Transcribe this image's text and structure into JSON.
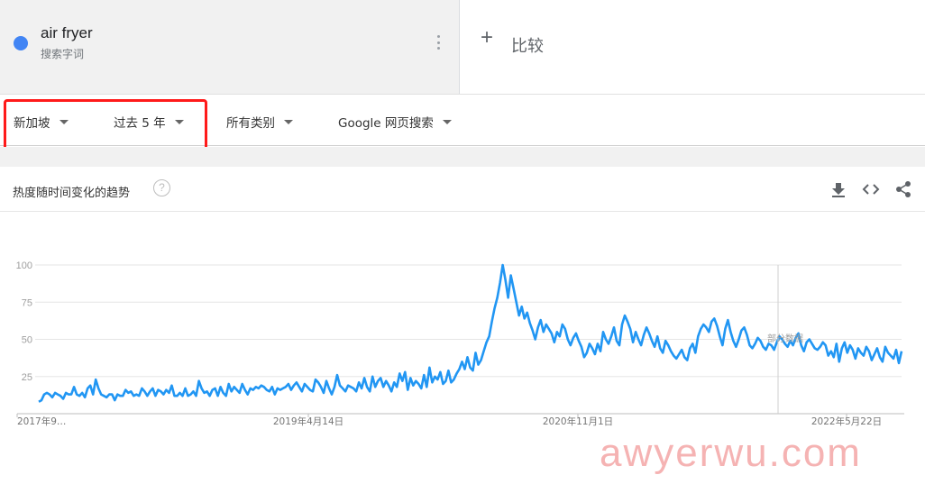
{
  "term": {
    "name": "air fryer",
    "subtitle": "搜索字词",
    "color": "#4285f4"
  },
  "compare": {
    "label": "比较"
  },
  "filters": [
    {
      "label": "新加坡"
    },
    {
      "label": "过去 5 年"
    },
    {
      "label": "所有类别"
    },
    {
      "label": "Google 网页搜索"
    }
  ],
  "card": {
    "title": "热度随时间变化的趋势",
    "help": "?"
  },
  "icons": [
    "download-icon",
    "embed-icon",
    "share-icon",
    "more-vert-icon",
    "help-icon",
    "add-icon"
  ],
  "watermark": "awyerwu.com",
  "chart_data": {
    "type": "line",
    "yticks": [
      100,
      75,
      50,
      25
    ],
    "ylim": [
      0,
      100
    ],
    "x_tick_labels": [
      "2017年9…",
      "2019年4月14日",
      "2020年11月1日",
      "2022年5月22日"
    ],
    "hover_label": "部分数据",
    "color": "#2196f3",
    "series": [
      {
        "values": [
          8,
          9,
          13,
          14,
          13,
          11,
          14,
          13,
          12,
          10,
          14,
          13,
          13,
          18,
          13,
          12,
          14,
          11,
          17,
          19,
          13,
          23,
          17,
          13,
          12,
          11,
          13,
          13,
          9,
          13,
          12,
          12,
          16,
          14,
          15,
          12,
          13,
          12,
          17,
          15,
          12,
          15,
          17,
          12,
          16,
          15,
          13,
          16,
          14,
          19,
          12,
          12,
          14,
          12,
          17,
          12,
          13,
          15,
          12,
          22,
          17,
          14,
          15,
          12,
          16,
          17,
          12,
          18,
          14,
          12,
          20,
          15,
          18,
          16,
          14,
          20,
          16,
          13,
          17,
          16,
          18,
          17,
          19,
          18,
          16,
          15,
          18,
          13,
          17,
          16,
          17,
          18,
          20,
          16,
          19,
          21,
          18,
          15,
          20,
          18,
          16,
          15,
          23,
          21,
          18,
          14,
          22,
          17,
          13,
          18,
          26,
          19,
          17,
          15,
          19,
          18,
          17,
          15,
          21,
          17,
          24,
          18,
          15,
          25,
          18,
          22,
          24,
          18,
          22,
          19,
          15,
          21,
          18,
          27,
          22,
          28,
          16,
          24,
          19,
          22,
          20,
          17,
          26,
          18,
          31,
          21,
          25,
          23,
          28,
          20,
          22,
          29,
          21,
          23,
          27,
          30,
          35,
          30,
          38,
          31,
          29,
          41,
          33,
          36,
          42,
          48,
          52,
          62,
          71,
          78,
          88,
          100,
          90,
          78,
          93,
          84,
          75,
          66,
          72,
          64,
          68,
          61,
          56,
          50,
          58,
          63,
          55,
          60,
          57,
          54,
          48,
          55,
          52,
          60,
          57,
          50,
          46,
          51,
          54,
          49,
          45,
          38,
          41,
          47,
          44,
          40,
          47,
          42,
          55,
          50,
          47,
          52,
          58,
          49,
          46,
          60,
          66,
          62,
          57,
          48,
          55,
          50,
          46,
          53,
          58,
          54,
          49,
          45,
          52,
          44,
          41,
          49,
          46,
          42,
          39,
          37,
          40,
          43,
          38,
          36,
          44,
          47,
          41,
          52,
          57,
          60,
          58,
          55,
          62,
          64,
          59,
          52,
          46,
          57,
          63,
          55,
          49,
          45,
          50,
          56,
          58,
          53,
          46,
          44,
          47,
          51,
          49,
          45,
          43,
          47,
          46,
          43,
          48,
          52,
          50,
          47,
          45,
          49,
          46,
          51,
          54,
          46,
          42,
          48,
          50,
          47,
          44,
          43,
          45,
          48,
          46,
          39,
          42,
          38,
          47,
          35,
          44,
          48,
          41,
          46,
          43,
          37,
          44,
          41,
          39,
          45,
          42,
          36,
          40,
          44,
          38,
          35,
          45,
          41,
          39,
          37,
          43,
          34,
          42
        ]
      }
    ]
  }
}
